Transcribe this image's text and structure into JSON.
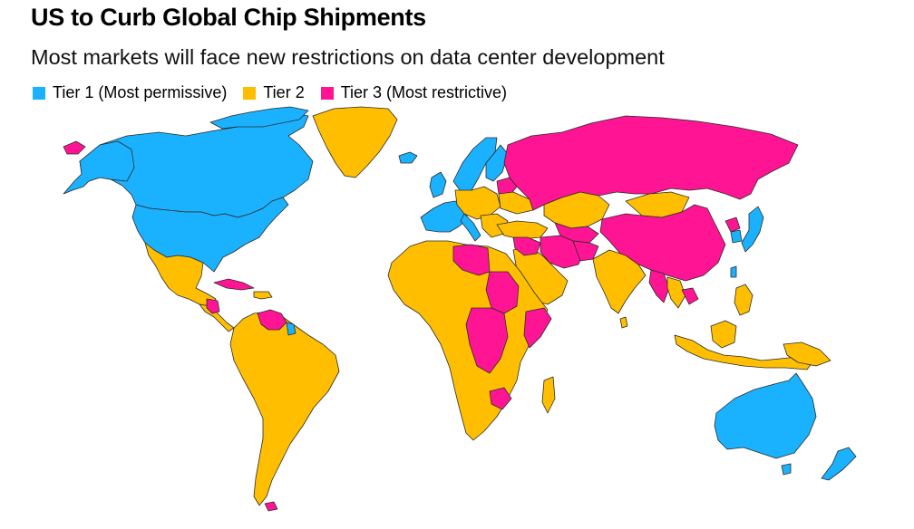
{
  "header": {
    "title": "US to Curb Global Chip Shipments",
    "subtitle": "Most markets will face new restrictions on data center development"
  },
  "legend": [
    {
      "label": "Tier 1 (Most permissive)",
      "color": "#1ab2ff"
    },
    {
      "label": "Tier 2",
      "color": "#ffbf00"
    },
    {
      "label": "Tier 3 (Most restrictive)",
      "color": "#ff1493"
    }
  ],
  "colors": {
    "tier1": "#1ab2ff",
    "tier2": "#ffbf00",
    "tier3": "#ff1493"
  }
}
